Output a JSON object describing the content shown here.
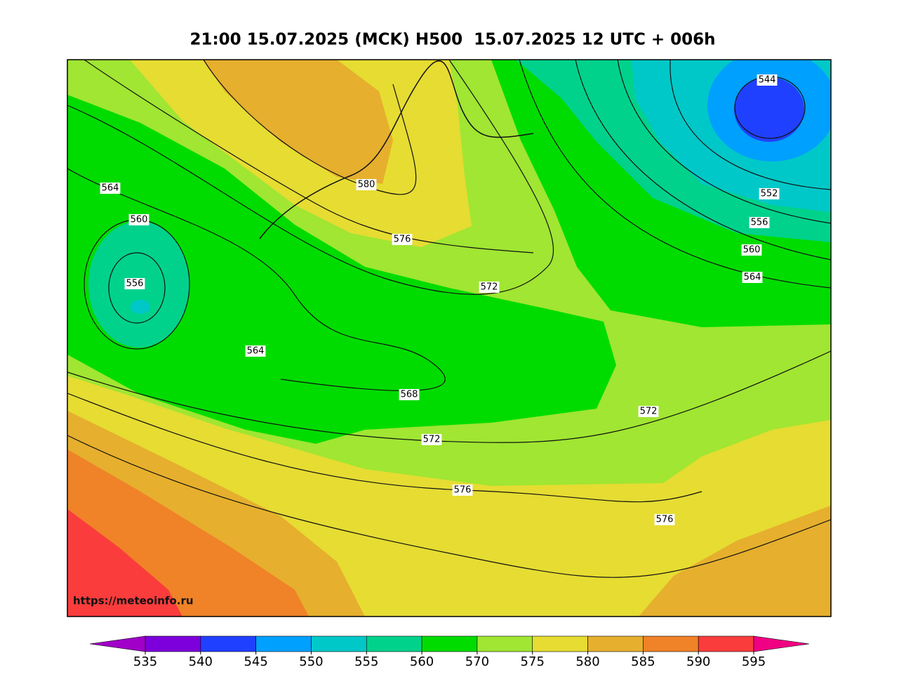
{
  "header": {
    "title": "21:00 15.07.2025 (MCK) H500  15.07.2025 12 UTC + 006h"
  },
  "map": {
    "contour_labels": [
      544,
      552,
      556,
      560,
      564,
      564,
      560,
      556,
      564,
      568,
      572,
      572,
      572,
      576,
      576,
      576,
      580
    ],
    "watermark": "https://meteoinfo.ru"
  },
  "colorbar": {
    "ticks": [
      535,
      540,
      545,
      550,
      555,
      560,
      570,
      575,
      580,
      585,
      590,
      595
    ],
    "colors": [
      "#7d00dc",
      "#2040ff",
      "#00a0ff",
      "#00c8c8",
      "#00d28c",
      "#00dc00",
      "#a0e632",
      "#e6dc32",
      "#e6af2d",
      "#f08228",
      "#fa3c3c"
    ],
    "under_color": "#a000c8",
    "over_color": "#f00082"
  }
}
